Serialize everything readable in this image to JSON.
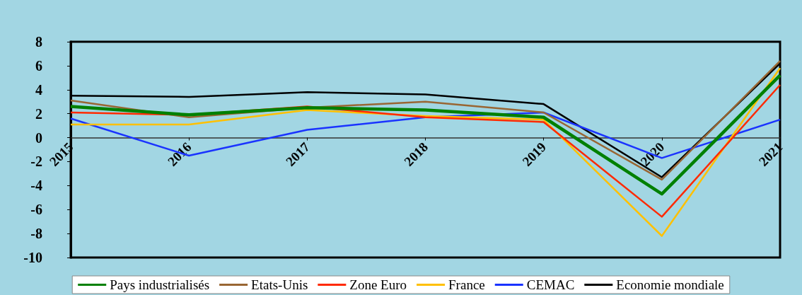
{
  "chart_data": {
    "type": "line",
    "categories": [
      "2015",
      "2016",
      "2017",
      "2018",
      "2019",
      "2020",
      "2021"
    ],
    "series": [
      {
        "name": "Pays industrialisés",
        "color": "#008000",
        "values": [
          2.6,
          1.9,
          2.5,
          2.3,
          1.7,
          -4.7,
          5.2
        ]
      },
      {
        "name": "Etats-Unis",
        "color": "#996633",
        "values": [
          3.1,
          1.7,
          2.5,
          3.0,
          2.1,
          -3.5,
          6.4
        ]
      },
      {
        "name": "Zone Euro",
        "color": "#ff2a00",
        "values": [
          2.1,
          1.9,
          2.6,
          1.7,
          1.3,
          -6.6,
          4.4
        ]
      },
      {
        "name": "France",
        "color": "#ffc000",
        "values": [
          1.1,
          1.1,
          2.3,
          1.8,
          1.5,
          -8.2,
          5.8
        ]
      },
      {
        "name": "CEMAC",
        "color": "#1a33ff",
        "values": [
          1.6,
          -1.5,
          0.65,
          1.7,
          2.1,
          -1.7,
          1.5
        ]
      },
      {
        "name": "Economie mondiale",
        "color": "#000000",
        "values": [
          3.5,
          3.4,
          3.8,
          3.6,
          2.8,
          -3.3,
          6.2
        ]
      }
    ],
    "ylim": [
      -10,
      8
    ],
    "yticks": [
      -10,
      -8,
      -6,
      -4,
      -2,
      0,
      2,
      4,
      6,
      8
    ],
    "grid": false,
    "legend": "bottom",
    "marker": "none",
    "line_style": "solid"
  }
}
